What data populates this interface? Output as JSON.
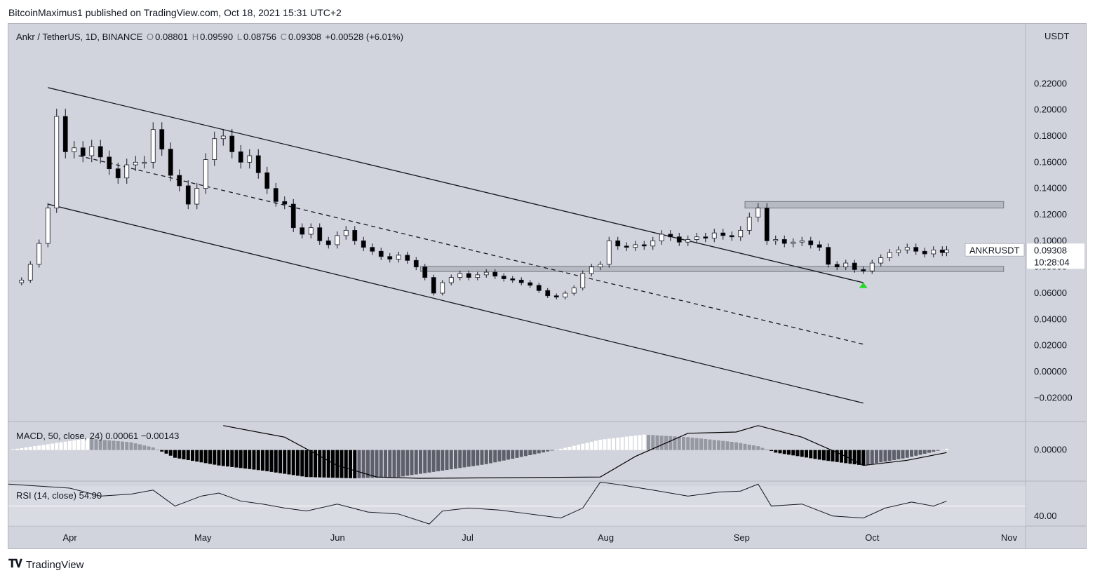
{
  "header": {
    "published_text": "BitcoinMaximus1 published on TradingView.com, Oct 18, 2021 15:31 UTC+2"
  },
  "symbol": {
    "title": "Ankr / TetherUS, 1D, BINANCE",
    "open_label": "O",
    "open": "0.08801",
    "high_label": "H",
    "high": "0.09590",
    "low_label": "L",
    "low": "0.08756",
    "close_label": "C",
    "close": "0.09308",
    "change": "+0.00528 (+6.01%)",
    "ticker_badge": "ANKRUSDT",
    "price_badge": "0.09308",
    "countdown": "10:28:04",
    "unit": "USDT"
  },
  "macd_legend": {
    "name": "MACD",
    "params": ", 50, close, 24)",
    "value1": "0.00061",
    "value2": "−0.00143"
  },
  "rsi_legend": {
    "name": "RSI (14, close)",
    "value": "54.90"
  },
  "footer": {
    "brand": "TradingView",
    "logo": "tv-logo"
  },
  "colors": {
    "background": "#d1d4dc",
    "up_candle": "#ffffff",
    "down_candle": "#000000",
    "zone": "#b2b5be",
    "marker": "#26d926"
  },
  "chart_data": {
    "type": "candlestick",
    "title": "Ankr / TetherUS, 1D, BINANCE",
    "ylabel": "USDT",
    "price_ylim": [
      -0.03,
      0.255
    ],
    "price_ticks": [
      "0.22000",
      "0.20000",
      "0.18000",
      "0.16000",
      "0.14000",
      "0.12000",
      "0.10000",
      "0.08000",
      "0.06000",
      "0.04000",
      "0.02000",
      "0.00000",
      "−0.02000"
    ],
    "x_ticks": [
      "Apr",
      "May",
      "Jun",
      "Jul",
      "Aug",
      "Sep",
      "Oct",
      "Nov"
    ],
    "x_range": [
      "2021-03-18",
      "2021-11-05"
    ],
    "close_series": [
      [
        "2021-03-18",
        0.068
      ],
      [
        "2021-03-21",
        0.07
      ],
      [
        "2021-03-23",
        0.082
      ],
      [
        "2021-03-25",
        0.098
      ],
      [
        "2021-03-27",
        0.125
      ],
      [
        "2021-03-29",
        0.195
      ],
      [
        "2021-03-31",
        0.168
      ],
      [
        "2021-04-02",
        0.171
      ],
      [
        "2021-04-04",
        0.165
      ],
      [
        "2021-04-06",
        0.172
      ],
      [
        "2021-04-08",
        0.164
      ],
      [
        "2021-04-10",
        0.155
      ],
      [
        "2021-04-12",
        0.148
      ],
      [
        "2021-04-14",
        0.158
      ],
      [
        "2021-04-16",
        0.16
      ],
      [
        "2021-04-18",
        0.16
      ],
      [
        "2021-04-20",
        0.185
      ],
      [
        "2021-04-22",
        0.17
      ],
      [
        "2021-04-24",
        0.15
      ],
      [
        "2021-04-26",
        0.142
      ],
      [
        "2021-04-28",
        0.128
      ],
      [
        "2021-04-30",
        0.14
      ],
      [
        "2021-05-02",
        0.162
      ],
      [
        "2021-05-04",
        0.178
      ],
      [
        "2021-05-06",
        0.18
      ],
      [
        "2021-05-08",
        0.168
      ],
      [
        "2021-05-10",
        0.16
      ],
      [
        "2021-05-12",
        0.165
      ],
      [
        "2021-05-14",
        0.152
      ],
      [
        "2021-05-16",
        0.14
      ],
      [
        "2021-05-18",
        0.13
      ],
      [
        "2021-05-20",
        0.128
      ],
      [
        "2021-05-22",
        0.11
      ],
      [
        "2021-05-24",
        0.105
      ],
      [
        "2021-05-26",
        0.11
      ],
      [
        "2021-05-28",
        0.1
      ],
      [
        "2021-05-30",
        0.097
      ],
      [
        "2021-06-01",
        0.104
      ],
      [
        "2021-06-03",
        0.108
      ],
      [
        "2021-06-05",
        0.1
      ],
      [
        "2021-06-07",
        0.095
      ],
      [
        "2021-06-09",
        0.092
      ],
      [
        "2021-06-11",
        0.088
      ],
      [
        "2021-06-13",
        0.086
      ],
      [
        "2021-06-15",
        0.089
      ],
      [
        "2021-06-17",
        0.085
      ],
      [
        "2021-06-19",
        0.08
      ],
      [
        "2021-06-21",
        0.072
      ],
      [
        "2021-06-23",
        0.06
      ],
      [
        "2021-06-25",
        0.068
      ],
      [
        "2021-06-27",
        0.072
      ],
      [
        "2021-06-29",
        0.075
      ],
      [
        "2021-07-01",
        0.072
      ],
      [
        "2021-07-03",
        0.074
      ],
      [
        "2021-07-05",
        0.076
      ],
      [
        "2021-07-07",
        0.073
      ],
      [
        "2021-07-09",
        0.071
      ],
      [
        "2021-07-11",
        0.07
      ],
      [
        "2021-07-13",
        0.068
      ],
      [
        "2021-07-15",
        0.066
      ],
      [
        "2021-07-17",
        0.062
      ],
      [
        "2021-07-19",
        0.058
      ],
      [
        "2021-07-21",
        0.057
      ],
      [
        "2021-07-23",
        0.06
      ],
      [
        "2021-07-25",
        0.064
      ],
      [
        "2021-07-27",
        0.075
      ],
      [
        "2021-07-29",
        0.08
      ],
      [
        "2021-07-31",
        0.082
      ],
      [
        "2021-08-02",
        0.1
      ],
      [
        "2021-08-04",
        0.096
      ],
      [
        "2021-08-06",
        0.095
      ],
      [
        "2021-08-08",
        0.097
      ],
      [
        "2021-08-10",
        0.096
      ],
      [
        "2021-08-12",
        0.1
      ],
      [
        "2021-08-14",
        0.105
      ],
      [
        "2021-08-16",
        0.103
      ],
      [
        "2021-08-18",
        0.099
      ],
      [
        "2021-08-20",
        0.101
      ],
      [
        "2021-08-22",
        0.103
      ],
      [
        "2021-08-24",
        0.102
      ],
      [
        "2021-08-26",
        0.106
      ],
      [
        "2021-08-28",
        0.104
      ],
      [
        "2021-08-30",
        0.103
      ],
      [
        "2021-09-01",
        0.108
      ],
      [
        "2021-09-03",
        0.118
      ],
      [
        "2021-09-05",
        0.125
      ],
      [
        "2021-09-07",
        0.1
      ],
      [
        "2021-09-09",
        0.101
      ],
      [
        "2021-09-11",
        0.098
      ],
      [
        "2021-09-13",
        0.099
      ],
      [
        "2021-09-15",
        0.1
      ],
      [
        "2021-09-17",
        0.097
      ],
      [
        "2021-09-19",
        0.095
      ],
      [
        "2021-09-21",
        0.082
      ],
      [
        "2021-09-23",
        0.08
      ],
      [
        "2021-09-25",
        0.083
      ],
      [
        "2021-09-27",
        0.078
      ],
      [
        "2021-09-29",
        0.077
      ],
      [
        "2021-10-01",
        0.083
      ],
      [
        "2021-10-03",
        0.087
      ],
      [
        "2021-10-05",
        0.091
      ],
      [
        "2021-10-07",
        0.093
      ],
      [
        "2021-10-09",
        0.095
      ],
      [
        "2021-10-11",
        0.092
      ],
      [
        "2021-10-13",
        0.09
      ],
      [
        "2021-10-15",
        0.093
      ],
      [
        "2021-10-17",
        0.091
      ],
      [
        "2021-10-18",
        0.09308
      ]
    ],
    "channel_upper": [
      [
        "2021-03-27",
        0.217
      ],
      [
        "2021-09-29",
        0.068
      ]
    ],
    "channel_lower": [
      [
        "2021-03-27",
        0.128
      ],
      [
        "2021-09-29",
        -0.024
      ]
    ],
    "channel_mid": [
      [
        "2021-04-03",
        0.165
      ],
      [
        "2021-09-29",
        0.021
      ]
    ],
    "zones": [
      {
        "name": "resistance",
        "range": [
          0.125,
          0.13
        ],
        "from": "2021-09-02",
        "to": "2021-10-31"
      },
      {
        "name": "support",
        "range": [
          0.0765,
          0.0805
        ],
        "from": "2021-06-20",
        "to": "2021-10-31"
      }
    ],
    "macd": {
      "ylim": [
        -0.022,
        0.02
      ],
      "tick": "0.00000",
      "histogram": [
        [
          "2021-03-18",
          0.0
        ],
        [
          "2021-03-28",
          0.005
        ],
        [
          "2021-04-05",
          0.009
        ],
        [
          "2021-04-15",
          0.006
        ],
        [
          "2021-04-20",
          0.002
        ],
        [
          "2021-04-25",
          -0.006
        ],
        [
          "2021-05-05",
          -0.012
        ],
        [
          "2021-05-15",
          -0.016
        ],
        [
          "2021-05-25",
          -0.021
        ],
        [
          "2021-06-05",
          -0.022
        ],
        [
          "2021-06-15",
          -0.021
        ],
        [
          "2021-06-25",
          -0.016
        ],
        [
          "2021-07-05",
          -0.011
        ],
        [
          "2021-07-15",
          -0.004
        ],
        [
          "2021-07-22",
          0.001
        ],
        [
          "2021-07-31",
          0.008
        ],
        [
          "2021-08-10",
          0.012
        ],
        [
          "2021-08-20",
          0.01
        ],
        [
          "2021-08-31",
          0.006
        ],
        [
          "2021-09-05",
          0.003
        ],
        [
          "2021-09-09",
          -0.002
        ],
        [
          "2021-09-20",
          -0.008
        ],
        [
          "2021-09-29",
          -0.012
        ],
        [
          "2021-10-09",
          -0.006
        ],
        [
          "2021-10-18",
          0.001
        ]
      ],
      "signal_line": [
        [
          "2021-05-06",
          0.019
        ],
        [
          "2021-05-20",
          0.01
        ],
        [
          "2021-06-01",
          -0.012
        ],
        [
          "2021-06-10",
          -0.021
        ],
        [
          "2021-06-20",
          -0.022
        ],
        [
          "2021-07-31",
          -0.021
        ],
        [
          "2021-08-08",
          -0.005
        ],
        [
          "2021-08-20",
          0.013
        ],
        [
          "2021-08-31",
          0.014
        ],
        [
          "2021-09-05",
          0.019
        ],
        [
          "2021-09-15",
          0.01
        ],
        [
          "2021-09-25",
          -0.005
        ],
        [
          "2021-09-29",
          -0.012
        ],
        [
          "2021-10-09",
          -0.008
        ],
        [
          "2021-10-18",
          -0.002
        ]
      ]
    },
    "rsi": {
      "ylim": [
        30,
        75
      ],
      "tick": "40.00",
      "values": [
        [
          "2021-03-18",
          72
        ],
        [
          "2021-03-25",
          70
        ],
        [
          "2021-04-01",
          68
        ],
        [
          "2021-04-08",
          60
        ],
        [
          "2021-04-15",
          62
        ],
        [
          "2021-04-20",
          66
        ],
        [
          "2021-04-25",
          50
        ],
        [
          "2021-05-01",
          60
        ],
        [
          "2021-05-05",
          63
        ],
        [
          "2021-05-10",
          55
        ],
        [
          "2021-05-15",
          52
        ],
        [
          "2021-05-20",
          48
        ],
        [
          "2021-05-25",
          45
        ],
        [
          "2021-06-01",
          52
        ],
        [
          "2021-06-08",
          44
        ],
        [
          "2021-06-15",
          42
        ],
        [
          "2021-06-22",
          32
        ],
        [
          "2021-06-25",
          45
        ],
        [
          "2021-07-01",
          48
        ],
        [
          "2021-07-08",
          46
        ],
        [
          "2021-07-15",
          42
        ],
        [
          "2021-07-22",
          38
        ],
        [
          "2021-07-27",
          48
        ],
        [
          "2021-07-31",
          74
        ],
        [
          "2021-08-05",
          71
        ],
        [
          "2021-08-12",
          66
        ],
        [
          "2021-08-20",
          60
        ],
        [
          "2021-08-27",
          64
        ],
        [
          "2021-09-01",
          65
        ],
        [
          "2021-09-05",
          72
        ],
        [
          "2021-09-08",
          50
        ],
        [
          "2021-09-15",
          52
        ],
        [
          "2021-09-22",
          40
        ],
        [
          "2021-09-29",
          38
        ],
        [
          "2021-10-04",
          48
        ],
        [
          "2021-10-10",
          54
        ],
        [
          "2021-10-15",
          50
        ],
        [
          "2021-10-18",
          54.9
        ]
      ]
    },
    "annotations": [
      {
        "type": "up-arrow",
        "date": "2021-09-29",
        "price": 0.066
      }
    ],
    "grid": false,
    "legend": "top-left"
  }
}
